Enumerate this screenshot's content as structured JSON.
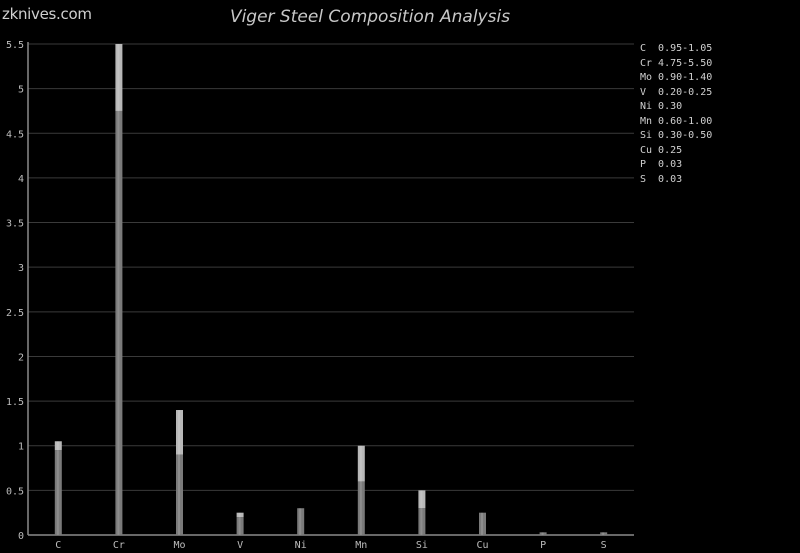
{
  "brand": "zknives.com",
  "chart_data": {
    "type": "bar",
    "title": "Viger Steel Composition Analysis",
    "categories": [
      "C",
      "Cr",
      "Mo",
      "V",
      "Ni",
      "Mn",
      "Si",
      "Cu",
      "P",
      "S"
    ],
    "series": [
      {
        "values_min": [
          0.95,
          4.75,
          0.9,
          0.2,
          0.3,
          0.6,
          0.3,
          0.25,
          0.03,
          0.03
        ],
        "values_max": [
          1.05,
          5.5,
          1.4,
          0.25,
          0.3,
          1.0,
          0.5,
          0.25,
          0.03,
          0.03
        ]
      }
    ],
    "ylim": [
      0,
      5.5
    ],
    "yticks": [
      "0",
      "0.5",
      "1",
      "1.5",
      "2",
      "2.5",
      "3",
      "3.5",
      "4",
      "4.5",
      "5",
      "5.5"
    ],
    "grid": true,
    "legend_placement": "right",
    "legend": [
      "C  0.95-1.05",
      "Cr 4.75-5.50",
      "Mo 0.90-1.40",
      "V  0.20-0.25",
      "Ni 0.30",
      "Mn 0.60-1.00",
      "Si 0.30-0.50",
      "Cu 0.25",
      "P  0.03",
      "S  0.03"
    ],
    "colors": {
      "background": "#000000",
      "grid": "#3a3a3a",
      "axis": "#8a8a8a",
      "bar_min": "#7a7a7a",
      "bar_range": "#b8b8b8"
    }
  }
}
